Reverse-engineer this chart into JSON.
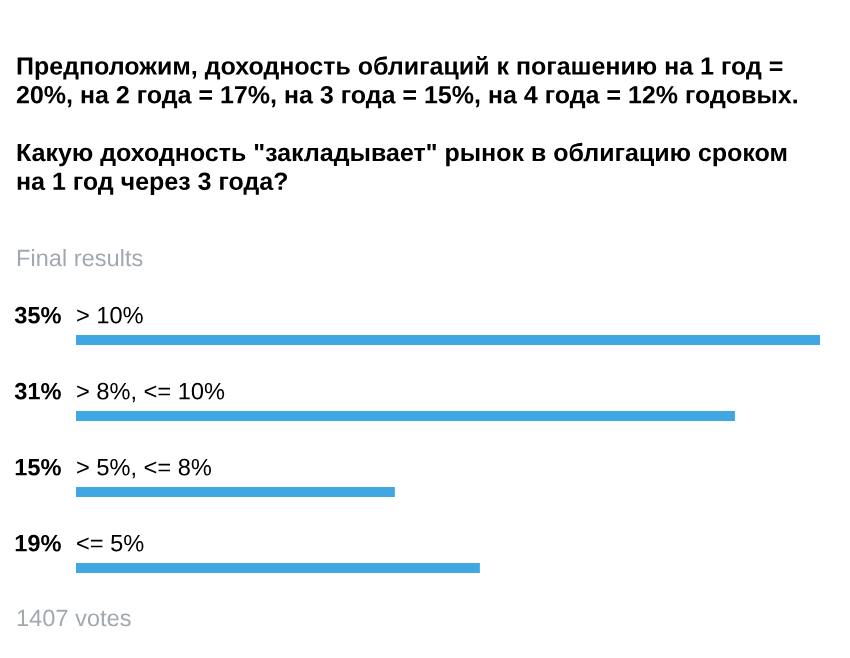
{
  "chart_data": {
    "type": "bar",
    "orientation": "horizontal",
    "title": "Предположим, доходность облигаций к погашению на 1 год =\n20%, на 2 года = 17%, на 3 года = 15%, на 4 года = 12% годовых.\n\nКакую доходность \"закладывает\" рынок в облигацию сроком\nна 1 год через 3 года?",
    "subtitle": "Final results",
    "annotations": [
      "1407 votes"
    ],
    "categories": [
      "> 10%",
      "> 8%, <= 10%",
      "> 5%, <= 8%",
      "<= 5%"
    ],
    "values": [
      35,
      31,
      15,
      19
    ],
    "value_labels": [
      "35%",
      "31%",
      "15%",
      "19%"
    ],
    "color": "#40a7e3"
  }
}
